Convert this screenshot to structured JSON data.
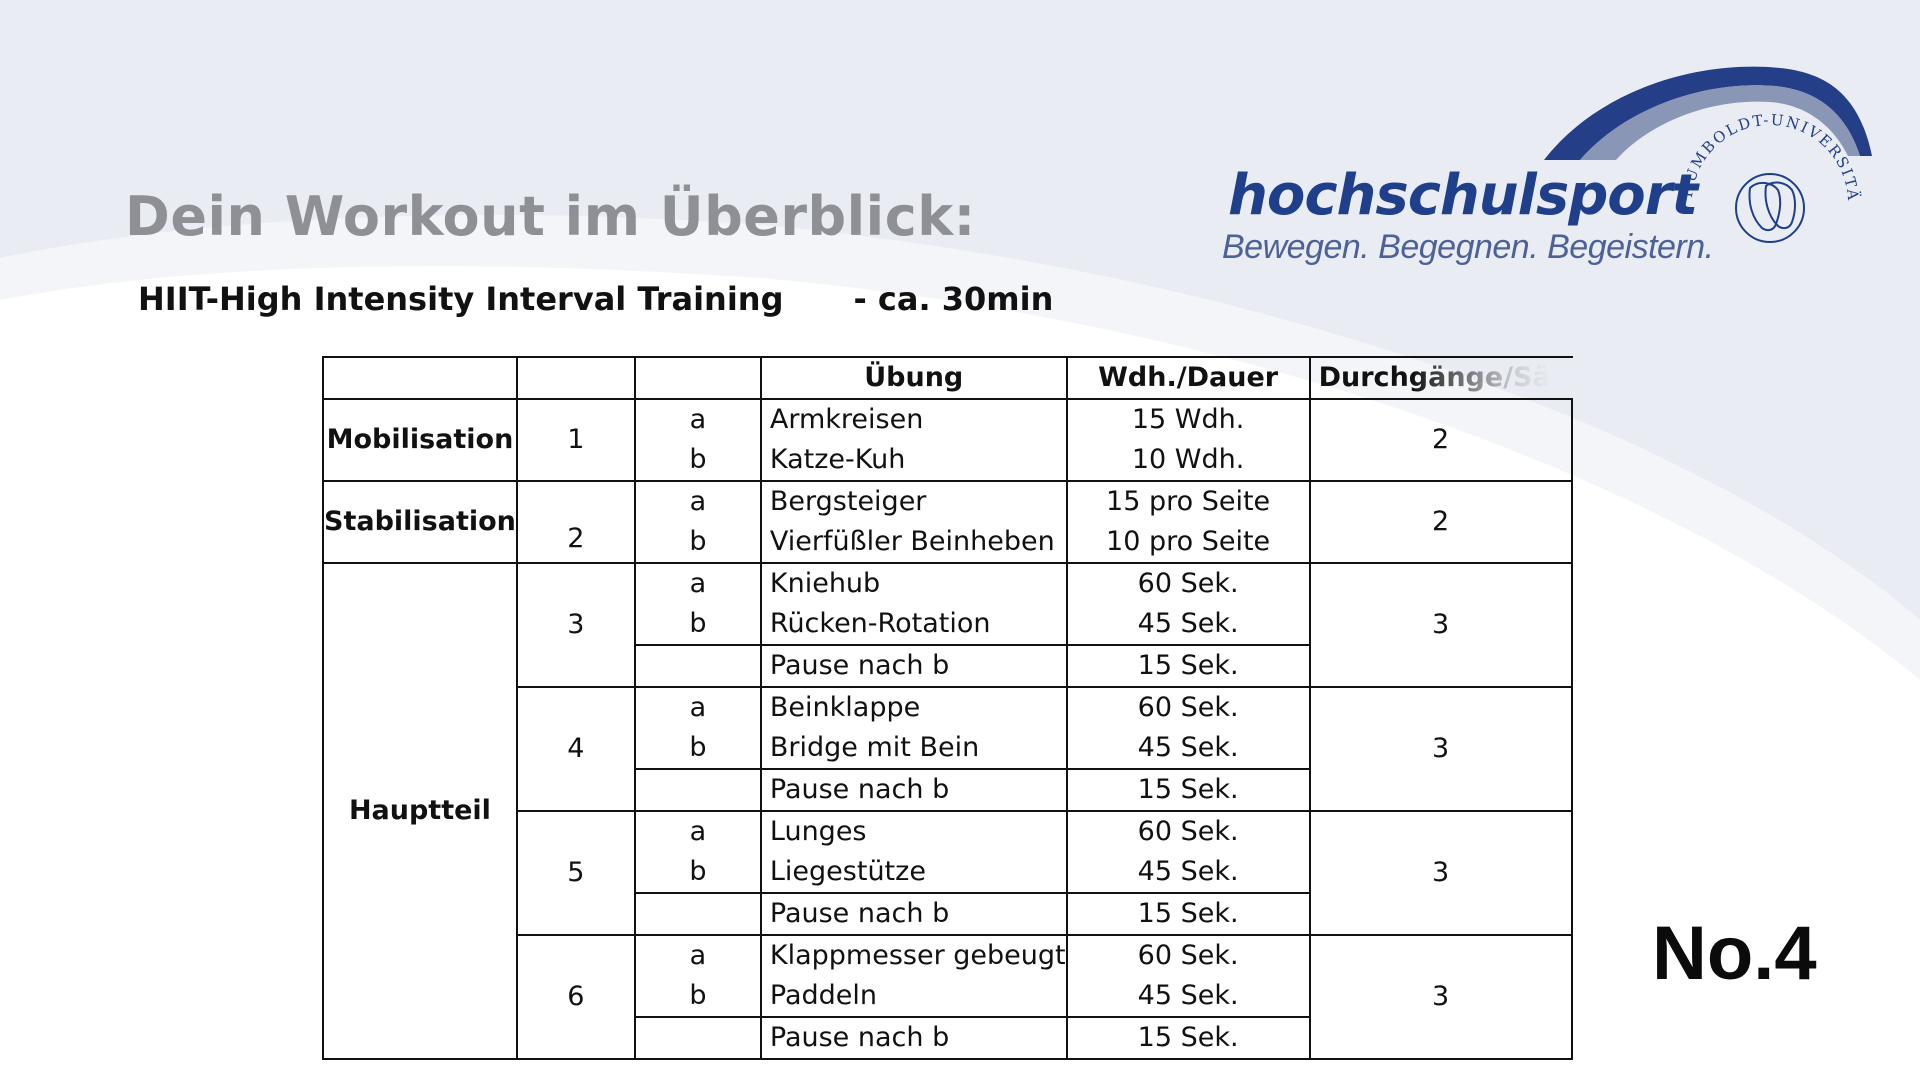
{
  "title": "Dein Workout im Überblick:",
  "subtitle": {
    "program": "HIIT-High Intensity Interval Training",
    "duration": "- ca. 30min"
  },
  "logo": {
    "wordmark_part1": "hochschul",
    "wordmark_part2": "sport",
    "tagline": "Bewegen. Begegnen. Begeistern.",
    "seal_text": "HUMBOLDT-UNIVERSITÄT ZU BERLIN"
  },
  "number_badge": "No.4",
  "colors": {
    "logo_blue": "#1f3f8a",
    "title_gray": "#8e9096",
    "background_band": "#e8ebf1"
  },
  "table": {
    "headers": [
      "",
      "",
      "",
      "Übung",
      "Wdh./Dauer",
      "Durchgänge/Sä"
    ],
    "sections": {
      "mobilisation": "Mobilisation",
      "stabilisation": "Stabilisation",
      "hauptteil": "Hauptteil"
    },
    "blocks": [
      {
        "num": "1",
        "sets": "2",
        "rows": [
          {
            "sub": "a",
            "exercise": "Armkreisen",
            "dose": "15 Wdh."
          },
          {
            "sub": "b",
            "exercise": "Katze-Kuh",
            "dose": "10 Wdh."
          }
        ]
      },
      {
        "num": "2",
        "sets": "2",
        "rows": [
          {
            "sub": "a",
            "exercise": "Bergsteiger",
            "dose": "15 pro Seite"
          },
          {
            "sub": "b",
            "exercise": "Vierfüßler Beinheben",
            "dose": "10 pro Seite"
          }
        ]
      },
      {
        "num": "3",
        "sets": "3",
        "rows": [
          {
            "sub": "a",
            "exercise": "Kniehub",
            "dose": "60 Sek."
          },
          {
            "sub": "b",
            "exercise": "Rücken-Rotation",
            "dose": "45 Sek."
          },
          {
            "sub": "",
            "exercise": "Pause nach b",
            "dose": "15 Sek."
          }
        ]
      },
      {
        "num": "4",
        "sets": "3",
        "rows": [
          {
            "sub": "a",
            "exercise": "Beinklappe",
            "dose": "60 Sek."
          },
          {
            "sub": "b",
            "exercise": "Bridge mit Bein",
            "dose": "45 Sek."
          },
          {
            "sub": "",
            "exercise": "Pause nach b",
            "dose": "15 Sek."
          }
        ]
      },
      {
        "num": "5",
        "sets": "3",
        "rows": [
          {
            "sub": "a",
            "exercise": "Lunges",
            "dose": "60 Sek."
          },
          {
            "sub": "b",
            "exercise": "Liegestütze",
            "dose": "45 Sek."
          },
          {
            "sub": "",
            "exercise": "Pause nach b",
            "dose": "15 Sek."
          }
        ]
      },
      {
        "num": "6",
        "sets": "3",
        "rows": [
          {
            "sub": "a",
            "exercise": "Klappmesser gebeugt",
            "dose": "60 Sek."
          },
          {
            "sub": "b",
            "exercise": "Paddeln",
            "dose": "45 Sek."
          },
          {
            "sub": "",
            "exercise": "Pause nach b",
            "dose": "15 Sek."
          }
        ]
      }
    ]
  }
}
